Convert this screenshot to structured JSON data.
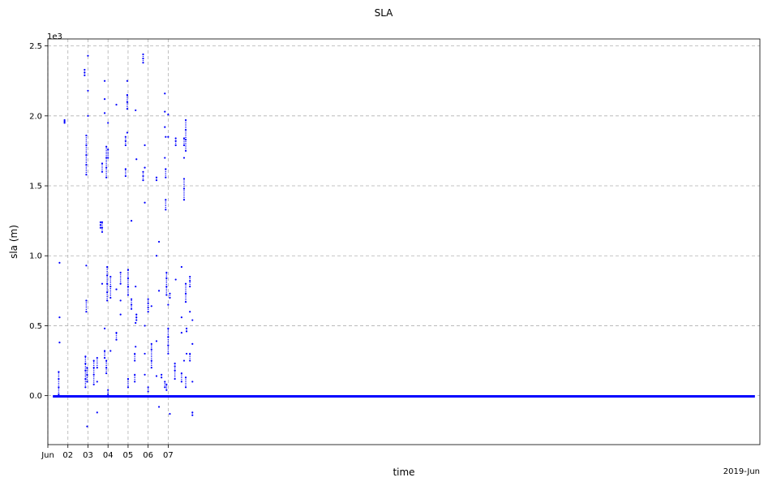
{
  "chart_data": {
    "type": "scatter",
    "title": "SLA",
    "xlabel": "time",
    "ylabel": "sla (m)",
    "y_offset_label": "1e3",
    "x_offset_label": "2019-Jun",
    "xlim": [
      "2019-06-01T00:00",
      "2019-07-06T12:00"
    ],
    "ylim": [
      -350,
      2550
    ],
    "grid": true,
    "x_ticks": [
      {
        "value": "2019-06-01",
        "label": "Jun"
      },
      {
        "value": "2019-06-02",
        "label": "02"
      },
      {
        "value": "2019-06-03",
        "label": "03"
      },
      {
        "value": "2019-06-04",
        "label": "04"
      },
      {
        "value": "2019-06-05",
        "label": "05"
      },
      {
        "value": "2019-06-06",
        "label": "06"
      },
      {
        "value": "2019-06-07",
        "label": "07"
      }
    ],
    "y_ticks": [
      {
        "value": 0,
        "label": "0.0"
      },
      {
        "value": 500,
        "label": "0.5"
      },
      {
        "value": 1000,
        "label": "1.0"
      },
      {
        "value": 1500,
        "label": "1.5"
      },
      {
        "value": 2000,
        "label": "2.0"
      },
      {
        "value": 2500,
        "label": "2.5"
      }
    ],
    "marker_color": "#0000ff",
    "baseline": {
      "x_start": "2019-06-01T06:00",
      "x_end": "2019-07-06T06:00",
      "y": -5
    },
    "clusters": [
      {
        "x": "2019-06-01T13:00",
        "y": [
          10,
          60,
          120,
          170
        ]
      },
      {
        "x": "2019-06-01T14:00",
        "y": [
          380,
          560,
          950
        ]
      },
      {
        "x": "2019-06-01T20:00",
        "y": [
          1950,
          1960,
          1970
        ]
      },
      {
        "x": "2019-06-02T20:00",
        "y": [
          2290,
          2310,
          2330
        ]
      },
      {
        "x": "2019-06-02T21:00",
        "y": [
          60,
          120,
          180,
          230,
          280
        ]
      },
      {
        "x": "2019-06-02T22:00",
        "y": [
          1580,
          1650,
          1720,
          1790,
          1860,
          930,
          680,
          600
        ]
      },
      {
        "x": "2019-06-02T23:00",
        "y": [
          100,
          150,
          200,
          -220
        ]
      },
      {
        "x": "2019-06-03T00:00",
        "y": [
          2430,
          2180,
          2000
        ]
      },
      {
        "x": "2019-06-03T07:00",
        "y": [
          80,
          150,
          200,
          250
        ]
      },
      {
        "x": "2019-06-03T11:00",
        "y": [
          100,
          200,
          270,
          -120
        ]
      },
      {
        "x": "2019-06-03T15:00",
        "y": [
          1200,
          1220,
          1240
        ]
      },
      {
        "x": "2019-06-03T17:00",
        "y": [
          800,
          1170,
          1200,
          1240,
          1600,
          1660
        ]
      },
      {
        "x": "2019-06-03T20:00",
        "y": [
          270,
          320,
          2250,
          2120,
          2020,
          480
        ]
      },
      {
        "x": "2019-06-03T22:00",
        "y": [
          1560,
          1630,
          1700,
          1780,
          160,
          200,
          250
        ]
      },
      {
        "x": "2019-06-03T23:00",
        "y": [
          680,
          740,
          800,
          860,
          920
        ]
      },
      {
        "x": "2019-06-04T00:00",
        "y": [
          1700,
          1760,
          1950,
          10,
          40
        ]
      },
      {
        "x": "2019-06-04T03:00",
        "y": [
          700,
          780,
          850,
          320
        ]
      },
      {
        "x": "2019-06-04T10:00",
        "y": [
          2080,
          760,
          400,
          450
        ]
      },
      {
        "x": "2019-06-04T15:00",
        "y": [
          580,
          680,
          800,
          880
        ]
      },
      {
        "x": "2019-06-04T21:00",
        "y": [
          1790,
          1820,
          1850,
          1570,
          1620
        ]
      },
      {
        "x": "2019-06-04T23:00",
        "y": [
          2050,
          2100,
          2150,
          2250,
          1880
        ]
      },
      {
        "x": "2019-06-05T00:00",
        "y": [
          720,
          780,
          840,
          900,
          60,
          120
        ]
      },
      {
        "x": "2019-06-05T04:00",
        "y": [
          620,
          650,
          690,
          1250
        ]
      },
      {
        "x": "2019-06-05T08:00",
        "y": [
          100,
          150,
          250,
          300
        ]
      },
      {
        "x": "2019-06-05T09:00",
        "y": [
          350,
          520,
          780,
          2040
        ]
      },
      {
        "x": "2019-06-05T10:00",
        "y": [
          540,
          560,
          580,
          1690
        ]
      },
      {
        "x": "2019-06-05T18:00",
        "y": [
          2380,
          2410,
          2440,
          1540,
          1570,
          1600
        ]
      },
      {
        "x": "2019-06-05T20:00",
        "y": [
          1790,
          1630,
          1380,
          150,
          300,
          500
        ]
      },
      {
        "x": "2019-06-06T00:00",
        "y": [
          600,
          630,
          660,
          690,
          30,
          60
        ]
      },
      {
        "x": "2019-06-06T04:00",
        "y": [
          200,
          250,
          330,
          370,
          640
        ]
      },
      {
        "x": "2019-06-06T10:00",
        "y": [
          1000,
          1540,
          1560,
          390,
          140
        ]
      },
      {
        "x": "2019-06-06T13:00",
        "y": [
          1100,
          750,
          -80
        ]
      },
      {
        "x": "2019-06-06T16:00",
        "y": [
          130,
          150
        ]
      },
      {
        "x": "2019-06-06T20:00",
        "y": [
          1920,
          2030,
          2160,
          1700,
          60,
          100
        ]
      },
      {
        "x": "2019-06-06T21:00",
        "y": [
          1330,
          1400,
          1560,
          1620,
          1850
        ]
      },
      {
        "x": "2019-06-06T22:00",
        "y": [
          720,
          780,
          840,
          880,
          40,
          80
        ]
      },
      {
        "x": "2019-06-07T00:00",
        "y": [
          300,
          360,
          420,
          480,
          2010,
          1850,
          650
        ]
      },
      {
        "x": "2019-06-07T02:00",
        "y": [
          700,
          730,
          -130
        ]
      },
      {
        "x": "2019-06-07T08:00",
        "y": [
          210,
          230,
          180,
          120
        ]
      },
      {
        "x": "2019-06-07T09:00",
        "y": [
          1790,
          1820,
          1840,
          830
        ]
      },
      {
        "x": "2019-06-07T16:00",
        "y": [
          920,
          560,
          450,
          100,
          160
        ]
      },
      {
        "x": "2019-06-07T19:00",
        "y": [
          1400,
          1480,
          1550,
          1700,
          1790,
          1840,
          250
        ]
      },
      {
        "x": "2019-06-07T21:00",
        "y": [
          1750,
          1830,
          1900,
          1970,
          670,
          730,
          800,
          60,
          130
        ]
      },
      {
        "x": "2019-06-07T22:00",
        "y": [
          460,
          480,
          300
        ]
      },
      {
        "x": "2019-06-08T02:00",
        "y": [
          780,
          820,
          850,
          250,
          300,
          600
        ]
      },
      {
        "x": "2019-06-08T05:00",
        "y": [
          -120,
          -140,
          100,
          370,
          540
        ]
      }
    ]
  }
}
